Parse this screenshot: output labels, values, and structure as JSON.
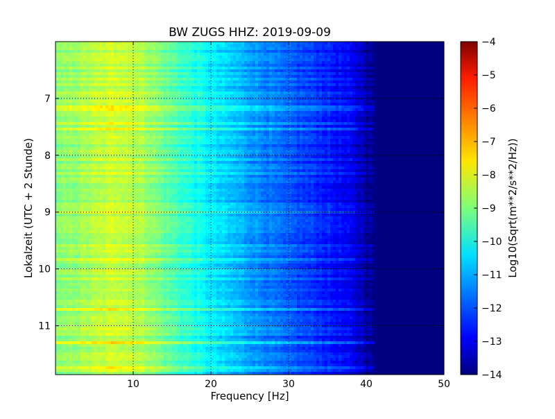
{
  "chart_data": {
    "type": "heatmap",
    "title": "BW ZUGS HHZ: 2019-09-09",
    "xlabel": "Frequency [Hz]",
    "ylabel": "Lokalzeit (UTC + 2 Stunde)",
    "xlim": [
      0,
      50
    ],
    "ylim": [
      11.86,
      6.0
    ],
    "xticks": [
      10,
      20,
      30,
      40,
      50
    ],
    "yticks": [
      7,
      8,
      9,
      10,
      11
    ],
    "grid": true,
    "colorbar": {
      "label": "Log10(Sqrt(m**2/s**2/Hz))",
      "range": [
        -14,
        -4
      ],
      "ticks": [
        -4,
        -5,
        -6,
        -7,
        -8,
        -9,
        -10,
        -11,
        -12,
        -13,
        -14
      ],
      "colormap": "jet"
    },
    "spectrum_profile": {
      "freq_hz": [
        0,
        2,
        4,
        6,
        8,
        10,
        12,
        14,
        16,
        18,
        20,
        22,
        24,
        26,
        28,
        30,
        32,
        34,
        36,
        38,
        40,
        41,
        42,
        44,
        46,
        48,
        50
      ],
      "log10_psd": [
        -9.0,
        -8.8,
        -8.6,
        -8.4,
        -8.2,
        -8.4,
        -8.7,
        -9.2,
        -9.6,
        -10.0,
        -10.4,
        -10.7,
        -11.0,
        -11.3,
        -11.6,
        -11.9,
        -12.1,
        -12.3,
        -12.6,
        -12.9,
        -13.5,
        -13.9,
        -14.0,
        -14.0,
        -14.0,
        -14.0,
        -14.0
      ]
    }
  }
}
